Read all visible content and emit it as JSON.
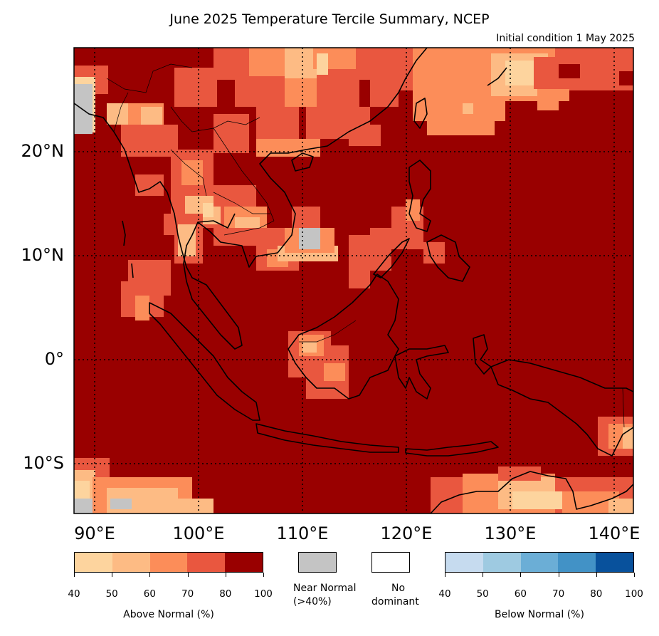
{
  "title": "June 2025 Temperature Tercile Summary, NCEP",
  "subtitle": "Initial condition 1 May 2025",
  "map": {
    "lat_labels": [
      "20°N",
      "10°N",
      "0°",
      "10°S"
    ],
    "lon_labels": [
      "90°E",
      "100°E",
      "110°E",
      "120°E",
      "130°E",
      "140°E"
    ],
    "colors": {
      "above": [
        "#fdd49e",
        "#fdbb84",
        "#fc8d59",
        "#e9573f",
        "#990000"
      ],
      "below": [
        "#c6dbef",
        "#9ecae1",
        "#6baed6",
        "#4292c6",
        "#08519c"
      ],
      "near_normal": "#c4c4c4",
      "no_dominant": "#ffffff"
    }
  },
  "legend": {
    "above": {
      "label": "Above Normal (%)",
      "ticks": [
        "40",
        "50",
        "60",
        "70",
        "80",
        "100"
      ]
    },
    "near": {
      "label_line1": "Near Normal",
      "label_line2": "(>40%)"
    },
    "nodom": {
      "label_line1": "No",
      "label_line2": "dominant"
    },
    "below": {
      "label": "Below Normal (%)",
      "ticks": [
        "40",
        "50",
        "60",
        "70",
        "80",
        "100"
      ]
    }
  }
}
